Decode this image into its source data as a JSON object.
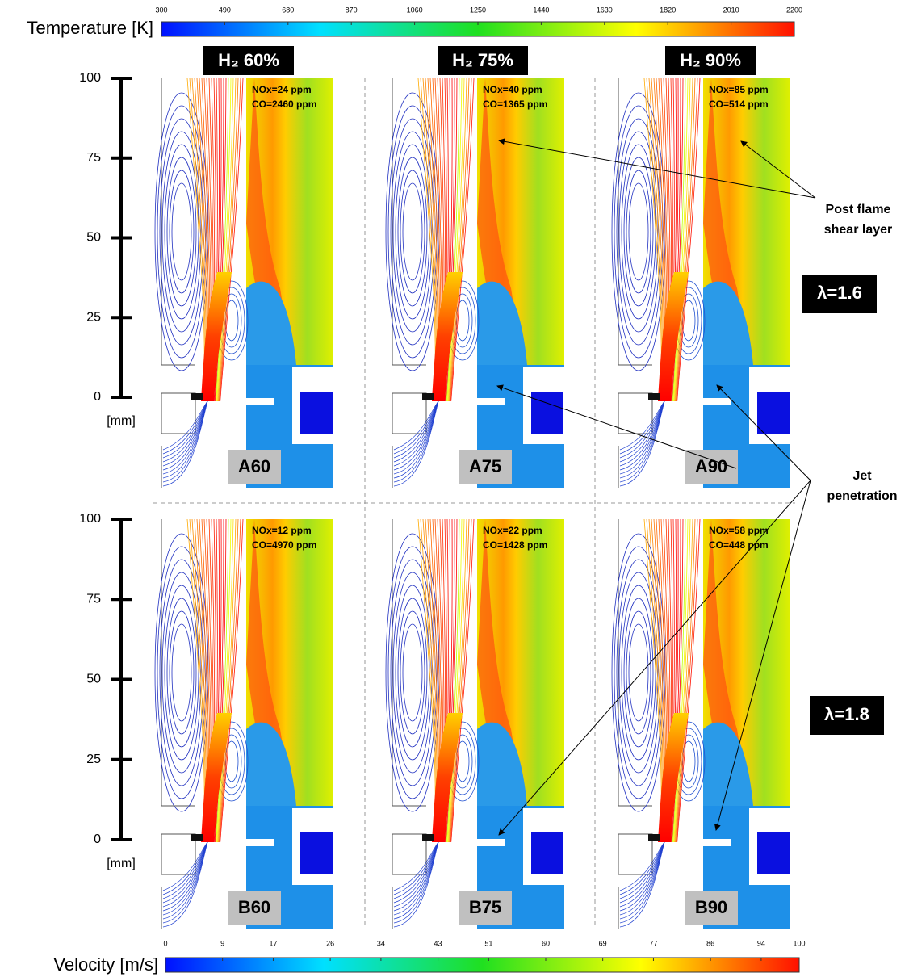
{
  "temperature_colorbar": {
    "label": "Temperature [K]",
    "range": [
      300,
      2200
    ],
    "ticks": [
      300,
      490,
      680,
      870,
      1060,
      1250,
      1440,
      1630,
      1820,
      2010,
      2200
    ]
  },
  "velocity_colorbar": {
    "label": "Velocity [m/s]",
    "range": [
      0,
      100
    ],
    "ticks": [
      0,
      9,
      17,
      26,
      34,
      43,
      51,
      60,
      69,
      77,
      86,
      94,
      100
    ]
  },
  "columns": [
    "H₂ 60%",
    "H₂ 75%",
    "H₂ 90%"
  ],
  "rows": [
    {
      "label": "λ=1.6",
      "axis": {
        "range": [
          0,
          100
        ],
        "ticks": [
          0,
          25,
          50,
          75,
          100
        ],
        "unit": "[mm]"
      },
      "panels": [
        {
          "id": "A60",
          "nox": "NOx=24 ppm",
          "co": "CO=2460 ppm"
        },
        {
          "id": "A75",
          "nox": "NOx=40 ppm",
          "co": "CO=1365 ppm"
        },
        {
          "id": "A90",
          "nox": "NOx=85 ppm",
          "co": "CO=514 ppm"
        }
      ]
    },
    {
      "label": "λ=1.8",
      "axis": {
        "range": [
          0,
          100
        ],
        "ticks": [
          0,
          25,
          50,
          75,
          100
        ],
        "unit": "[mm]"
      },
      "panels": [
        {
          "id": "B60",
          "nox": "NOx=12 ppm",
          "co": "CO=4970 ppm"
        },
        {
          "id": "B75",
          "nox": "NOx=22 ppm",
          "co": "CO=1428 ppm"
        },
        {
          "id": "B90",
          "nox": "NOx=58 ppm",
          "co": "CO=448 ppm"
        }
      ]
    }
  ],
  "annotations": [
    {
      "lines": [
        "Post flame",
        "shear layer"
      ]
    },
    {
      "lines": [
        "Jet",
        "penetration"
      ]
    }
  ]
}
